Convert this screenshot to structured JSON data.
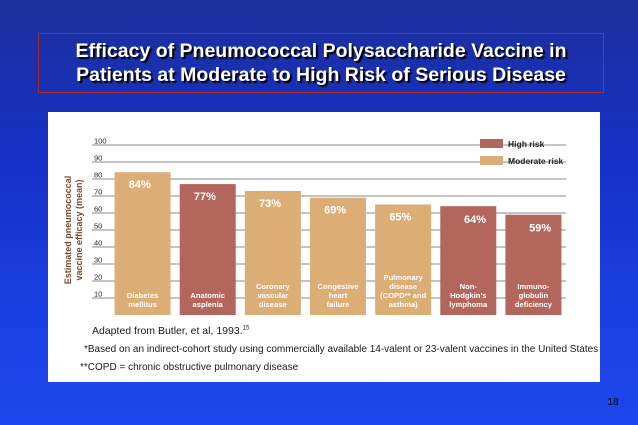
{
  "slide": {
    "title_line1": "Efficacy of Pneumococcal Polysaccharide Vaccine in",
    "title_line2": "Patients at Moderate to High Risk of Serious Disease",
    "page_number": "18"
  },
  "chart_data": {
    "type": "bar",
    "categories": [
      [
        "Diabetes",
        "mellitus"
      ],
      [
        "Anatomic",
        "asplenia"
      ],
      [
        "Coronary",
        "vascular",
        "disease"
      ],
      [
        "Congestive",
        "heart",
        "failure"
      ],
      [
        "Pulmonary",
        "disease",
        "(COPD** and",
        "asthma)"
      ],
      [
        "Non-",
        "Hodgkin's",
        "lymphoma"
      ],
      [
        "Immuno-",
        "globulin",
        "deficiency"
      ]
    ],
    "values": [
      84,
      77,
      73,
      69,
      65,
      64,
      59
    ],
    "value_labels": [
      "84%",
      "77%",
      "73%",
      "69%",
      "65%",
      "64%",
      "59%"
    ],
    "risk": [
      "moderate",
      "high",
      "moderate",
      "moderate",
      "moderate",
      "high",
      "high"
    ],
    "legend": [
      {
        "key": "high",
        "label": "High risk",
        "color": "#b3665b"
      },
      {
        "key": "moderate",
        "label": "Moderate risk",
        "color": "#dcae76"
      }
    ],
    "legend_position": "top-right",
    "ylabel_lines": [
      "Estimated pneumococcal",
      "vaccine efficacy (mean)"
    ],
    "yticks": [
      10,
      20,
      30,
      40,
      50,
      60,
      70,
      80,
      90,
      100
    ],
    "ylim": [
      0,
      100
    ],
    "grid": true
  },
  "notes": {
    "source": "Adapted from Butler, et al, 1993.",
    "source_ref": "15",
    "footnote1": "*Based on an indirect-cohort study using commercially available 14-valent or 23-valent vaccines in the United States",
    "footnote2": "**COPD = chronic obstructive pulmonary disease"
  }
}
